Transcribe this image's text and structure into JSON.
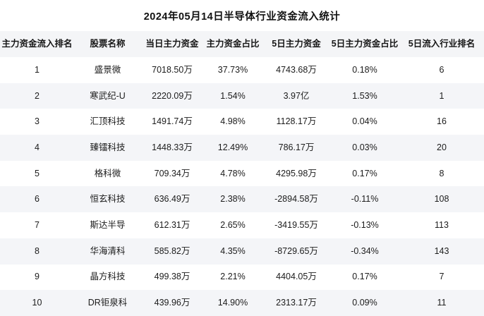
{
  "title": "2024年05月14日半导体行业资金流入统计",
  "colors": {
    "page_bg": "#ffffff",
    "header_row_bg": "#f4f5f7",
    "alt_row_bg": "#f4f5f8",
    "text": "#1c1c1c"
  },
  "chart_data": {
    "type": "table",
    "title": "2024年05月14日半导体行业资金流入统计",
    "columns": [
      "主力资金流入排名",
      "股票名称",
      "当日主力资金",
      "主力资金占比",
      "5日主力资金",
      "5日主力资金占比",
      "5日流入行业排名"
    ],
    "rows": [
      [
        "1",
        "盛景微",
        "7018.50万",
        "37.73%",
        "4743.68万",
        "0.18%",
        "6"
      ],
      [
        "2",
        "寒武纪-U",
        "2220.09万",
        "1.54%",
        "3.97亿",
        "1.53%",
        "1"
      ],
      [
        "3",
        "汇顶科技",
        "1491.74万",
        "4.98%",
        "1128.17万",
        "0.04%",
        "16"
      ],
      [
        "4",
        "臻镭科技",
        "1448.33万",
        "12.49%",
        "786.17万",
        "0.03%",
        "20"
      ],
      [
        "5",
        "格科微",
        "709.34万",
        "4.78%",
        "4295.98万",
        "0.17%",
        "8"
      ],
      [
        "6",
        "恒玄科技",
        "636.49万",
        "2.38%",
        "-2894.58万",
        "-0.11%",
        "108"
      ],
      [
        "7",
        "斯达半导",
        "612.31万",
        "2.65%",
        "-3419.55万",
        "-0.13%",
        "113"
      ],
      [
        "8",
        "华海清科",
        "585.82万",
        "4.35%",
        "-8729.65万",
        "-0.34%",
        "143"
      ],
      [
        "9",
        "晶方科技",
        "499.38万",
        "2.21%",
        "4404.05万",
        "0.17%",
        "7"
      ],
      [
        "10",
        "DR钜泉科",
        "439.96万",
        "14.90%",
        "2313.17万",
        "0.09%",
        "11"
      ]
    ]
  }
}
